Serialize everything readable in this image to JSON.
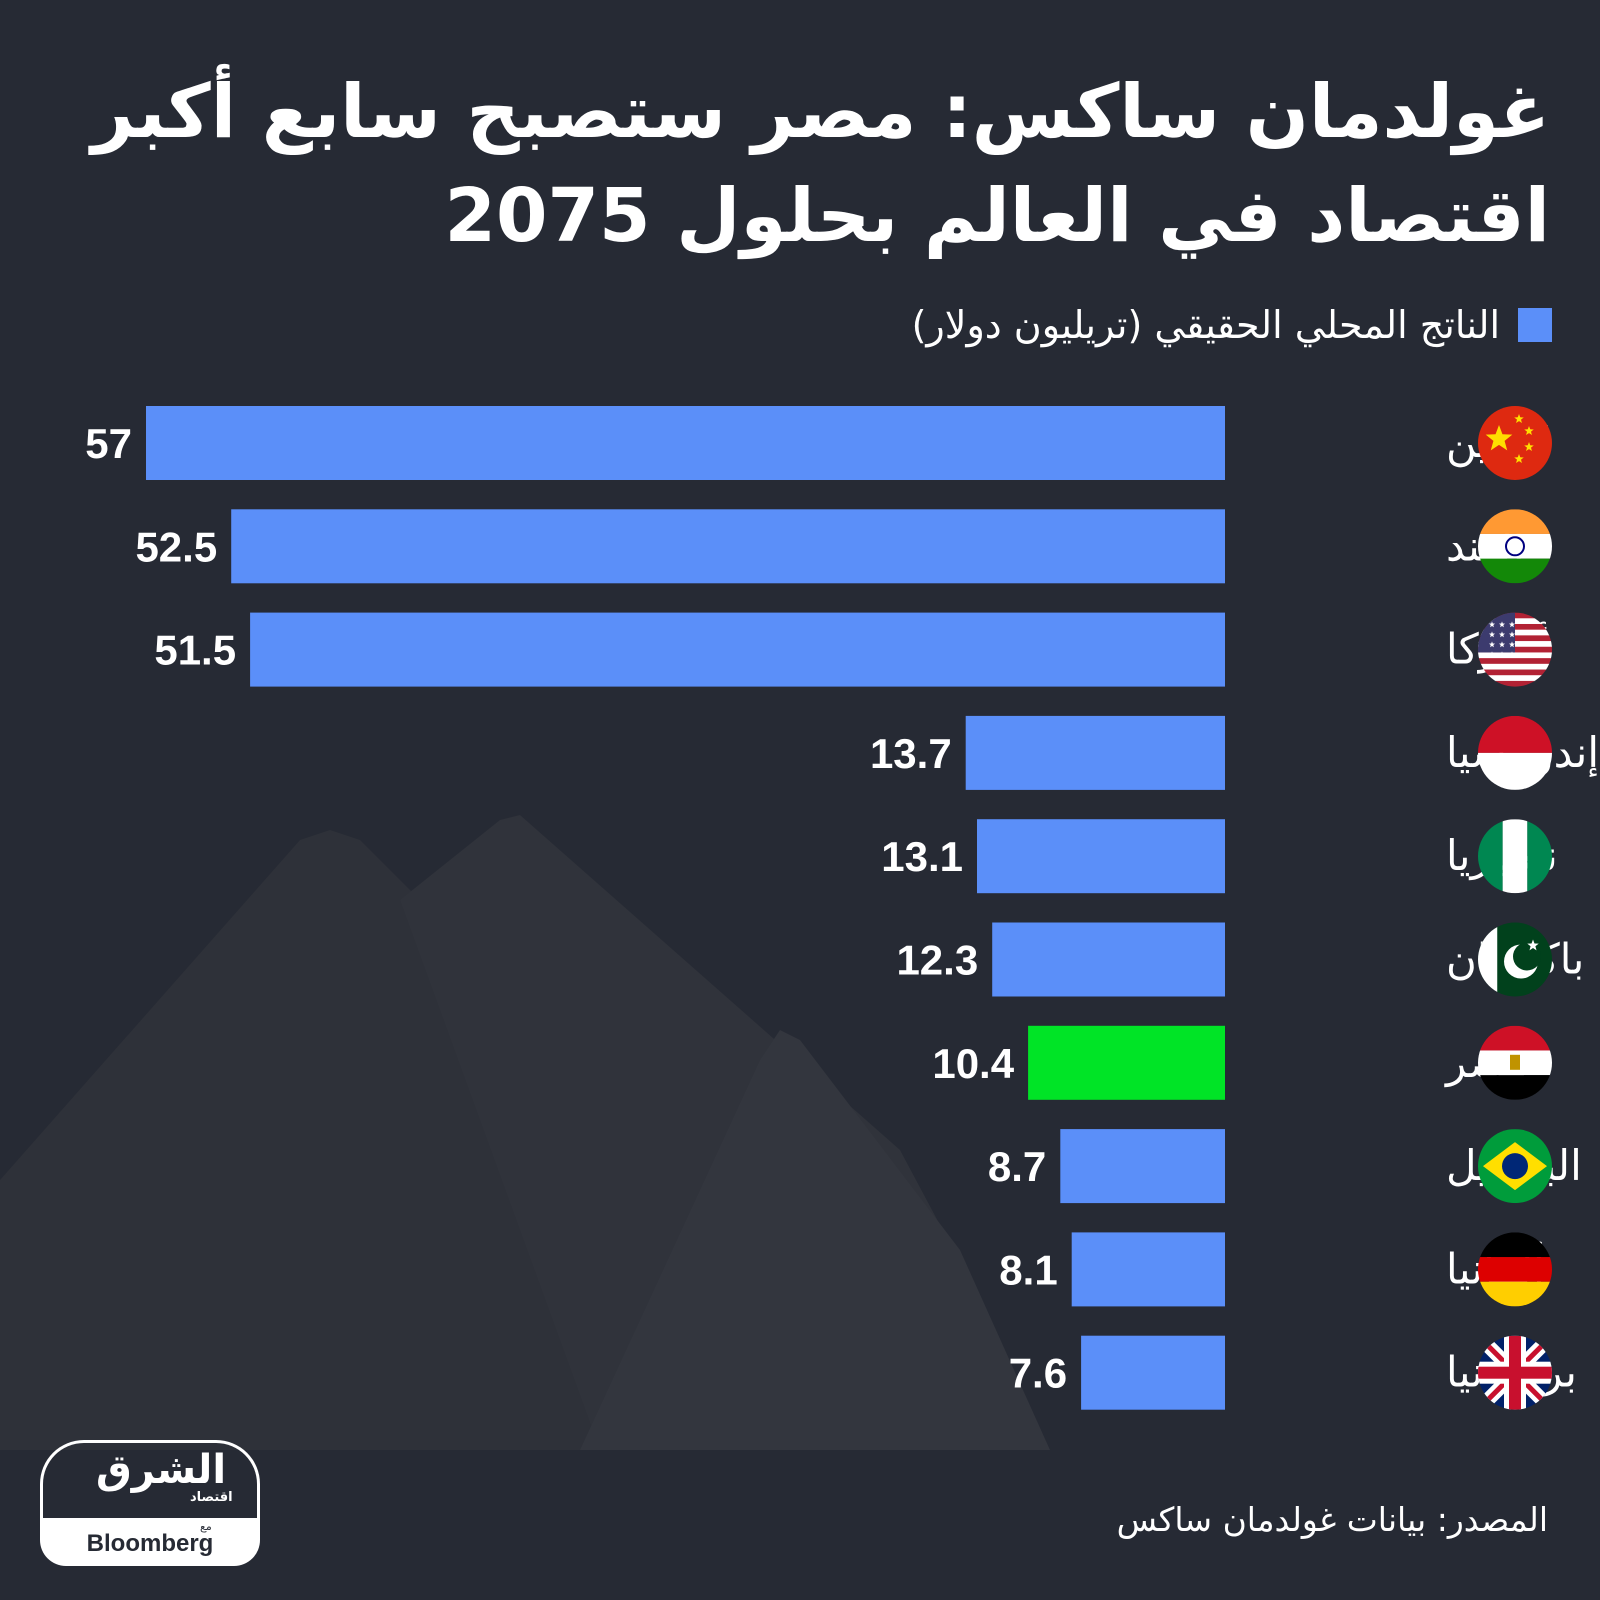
{
  "title": "غولدمان ساكس: مصر ستصبح سابع أكبر اقتصاد في العالم بحلول 2075",
  "legend_label": "الناتج المحلي الحقيقي (تريليون دولار)",
  "source": "المصدر: بيانات غولدمان ساكس",
  "logo": {
    "main": "الشرق",
    "sub": "اقتصاد",
    "with": "مع",
    "partner": "Bloomberg"
  },
  "colors": {
    "background": "#262a34",
    "bar": "#5b8ff9",
    "highlight": "#00e426",
    "text": "#ffffff"
  },
  "chart_data": {
    "type": "bar",
    "orientation": "horizontal",
    "direction": "right-to-left",
    "title": "غولدمان ساكس: مصر ستصبح سابع أكبر اقتصاد في العالم بحلول 2075",
    "categories": [
      "الصين",
      "الهند",
      "أميركا",
      "إندونيسيا",
      "نيجيريا",
      "باكستان",
      "مصر",
      "البرازيل",
      "ألمانيا",
      "بريطانيا"
    ],
    "flags": [
      "china-flag-icon",
      "india-flag-icon",
      "usa-flag-icon",
      "indonesia-flag-icon",
      "nigeria-flag-icon",
      "pakistan-flag-icon",
      "egypt-flag-icon",
      "brazil-flag-icon",
      "germany-flag-icon",
      "uk-flag-icon"
    ],
    "value_labels": [
      "57",
      "52.5",
      "51.5",
      "13.7",
      "13.1",
      "12.3",
      "10.4",
      "8.7",
      "8.1",
      "7.6"
    ],
    "series": [
      {
        "name": "الناتج المحلي الحقيقي (تريليون دولار)",
        "values": [
          57,
          52.5,
          51.5,
          13.7,
          13.1,
          12.3,
          10.4,
          8.7,
          8.1,
          7.6
        ]
      }
    ],
    "highlight_category": "مصر",
    "xlim": [
      0,
      57
    ],
    "legend_position": "top-right",
    "grid": false
  }
}
